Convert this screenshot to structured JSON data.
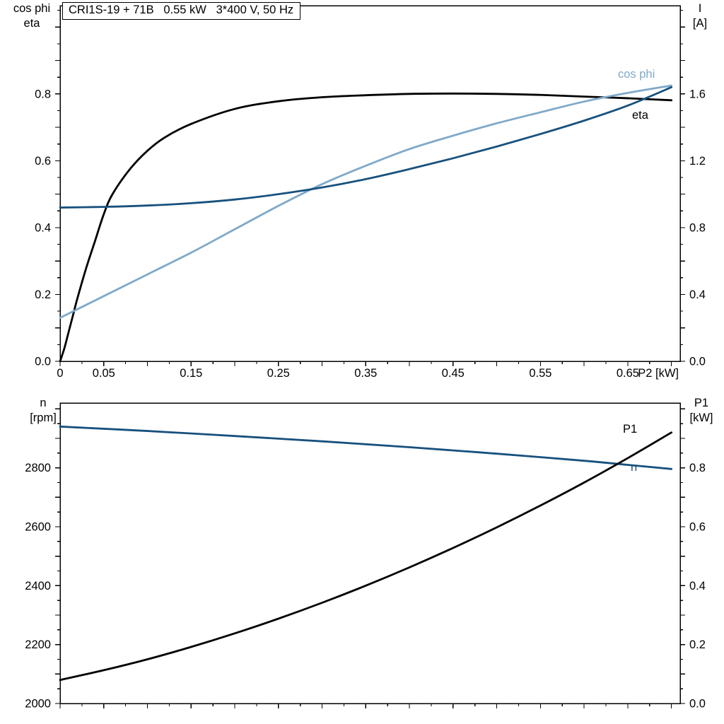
{
  "title_box": {
    "text": "CRI1S-19 + 71B   0.55 kW   3*400 V, 50 Hz"
  },
  "colors": {
    "black": "#000000",
    "dark_blue": "#17517e",
    "light_blue": "#7fa9c9"
  },
  "axis_corner_labels": {
    "top_left_line1": "cos phi",
    "top_left_line2": "eta",
    "top_right_line1": "I",
    "top_right_line2": "[A]",
    "bottom_left_line1": "n",
    "bottom_left_line2": "[rpm]",
    "bottom_right_line1": "P1",
    "bottom_right_line2": "[kW]"
  },
  "curve_labels": {
    "cos_phi": "cos phi",
    "eta": "eta",
    "p1": "P1",
    "n": "n"
  },
  "chart_data": [
    {
      "id": "top",
      "type": "line",
      "title": "CRI1S-19 + 71B   0.55 kW   3*400 V, 50 Hz",
      "xlabel": "P2 [kW]",
      "ylabel_left": "cos phi / eta",
      "ylabel_right": "I [A]",
      "xlim": [
        0,
        0.71
      ],
      "ylim_left": [
        0,
        1.064
      ],
      "ylim_right": [
        0,
        2.128
      ],
      "ticks": {
        "x_minor": 0.025,
        "x_major": 0.05,
        "left_minor": 0.05,
        "left_major": 0.1,
        "right_minor": 0.1,
        "right_major": 0.2
      },
      "x_tick_labels": [
        {
          "v": 0,
          "t": "0"
        },
        {
          "v": 0.05,
          "t": "0.05"
        },
        {
          "v": 0.15,
          "t": "0.15"
        },
        {
          "v": 0.25,
          "t": "0.25"
        },
        {
          "v": 0.35,
          "t": "0.35"
        },
        {
          "v": 0.45,
          "t": "0.45"
        },
        {
          "v": 0.55,
          "t": "0.55"
        },
        {
          "v": 0.65,
          "t": "0.65"
        }
      ],
      "y_left_labels": [
        {
          "v": 0,
          "t": "0.0"
        },
        {
          "v": 0.2,
          "t": "0.2"
        },
        {
          "v": 0.4,
          "t": "0.4"
        },
        {
          "v": 0.6,
          "t": "0.6"
        },
        {
          "v": 0.8,
          "t": "0.8"
        }
      ],
      "y_right_labels": [
        {
          "v": 0,
          "t": "0.0"
        },
        {
          "v": 0.4,
          "t": "0.4"
        },
        {
          "v": 0.8,
          "t": "0.8"
        },
        {
          "v": 1.2,
          "t": "1.2"
        },
        {
          "v": 1.6,
          "t": "1.6"
        }
      ],
      "series": [
        {
          "name": "eta",
          "axis": "left",
          "color": "black",
          "x": [
            0,
            0.005,
            0.01,
            0.015,
            0.02,
            0.03,
            0.04,
            0.05,
            0.06,
            0.08,
            0.1,
            0.12,
            0.15,
            0.2,
            0.25,
            0.3,
            0.35,
            0.4,
            0.45,
            0.5,
            0.55,
            0.6,
            0.65,
            0.7
          ],
          "y": [
            0,
            0.04,
            0.09,
            0.14,
            0.19,
            0.28,
            0.36,
            0.44,
            0.5,
            0.575,
            0.63,
            0.67,
            0.71,
            0.755,
            0.778,
            0.79,
            0.796,
            0.8,
            0.801,
            0.8,
            0.797,
            0.792,
            0.787,
            0.781
          ]
        },
        {
          "name": "cos phi",
          "axis": "left",
          "color": "light_blue",
          "x": [
            0,
            0.05,
            0.1,
            0.15,
            0.2,
            0.25,
            0.3,
            0.35,
            0.4,
            0.45,
            0.5,
            0.55,
            0.6,
            0.65,
            0.7
          ],
          "y": [
            0.13,
            0.195,
            0.26,
            0.325,
            0.395,
            0.465,
            0.53,
            0.585,
            0.635,
            0.675,
            0.712,
            0.745,
            0.777,
            0.803,
            0.825
          ]
        },
        {
          "name": "I",
          "axis": "right",
          "color": "dark_blue",
          "x": [
            0,
            0.05,
            0.1,
            0.15,
            0.2,
            0.25,
            0.3,
            0.35,
            0.4,
            0.45,
            0.5,
            0.55,
            0.6,
            0.65,
            0.7
          ],
          "y": [
            0.92,
            0.924,
            0.932,
            0.946,
            0.968,
            1.0,
            1.04,
            1.09,
            1.15,
            1.215,
            1.285,
            1.36,
            1.44,
            1.53,
            1.64
          ]
        }
      ]
    },
    {
      "id": "bottom",
      "type": "line",
      "title": "",
      "xlabel": "",
      "ylabel_left": "n [rpm]",
      "ylabel_right": "P1 [kW]",
      "xlim": [
        0,
        0.71
      ],
      "ylim_left": [
        2000,
        3020
      ],
      "ylim_right": [
        0,
        1.02
      ],
      "ticks": {
        "x_minor": 0.025,
        "x_major": 0.05,
        "left_minor": 50,
        "left_major": 100,
        "right_minor": 0.05,
        "right_major": 0.1
      },
      "x_tick_labels": [],
      "y_left_labels": [
        {
          "v": 2000,
          "t": "2000"
        },
        {
          "v": 2200,
          "t": "2200"
        },
        {
          "v": 2400,
          "t": "2400"
        },
        {
          "v": 2600,
          "t": "2600"
        },
        {
          "v": 2800,
          "t": "2800"
        }
      ],
      "y_right_labels": [
        {
          "v": 0,
          "t": "0.0"
        },
        {
          "v": 0.2,
          "t": "0.2"
        },
        {
          "v": 0.4,
          "t": "0.4"
        },
        {
          "v": 0.6,
          "t": "0.6"
        },
        {
          "v": 0.8,
          "t": "0.8"
        }
      ],
      "series": [
        {
          "name": "n",
          "axis": "left",
          "color": "dark_blue",
          "x": [
            0,
            0.1,
            0.2,
            0.3,
            0.4,
            0.5,
            0.6,
            0.65,
            0.7
          ],
          "y": [
            2940,
            2925,
            2908,
            2890,
            2870,
            2848,
            2824,
            2810,
            2796
          ]
        },
        {
          "name": "P1",
          "axis": "right",
          "color": "black",
          "x": [
            0,
            0.05,
            0.1,
            0.15,
            0.2,
            0.25,
            0.3,
            0.35,
            0.4,
            0.45,
            0.5,
            0.55,
            0.6,
            0.65,
            0.7
          ],
          "y": [
            0.08,
            0.113,
            0.15,
            0.192,
            0.238,
            0.288,
            0.342,
            0.4,
            0.462,
            0.528,
            0.598,
            0.672,
            0.75,
            0.833,
            0.92
          ]
        }
      ]
    }
  ]
}
